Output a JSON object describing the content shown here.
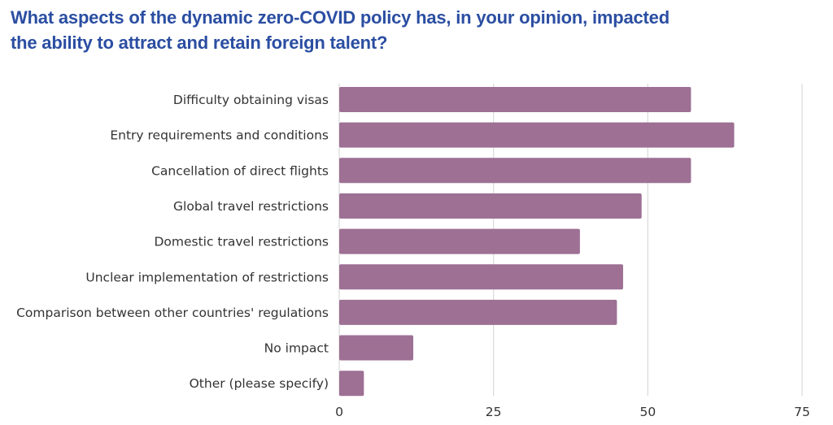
{
  "title": {
    "line1": "What aspects of the dynamic zero-COVID policy has, in your opinion, impacted",
    "line2": "the ability to attract and retain foreign talent?"
  },
  "colors": {
    "title": "#2b4ea2",
    "bar": "#9d7094",
    "grid": "#d9d9d9",
    "text": "#333333"
  },
  "chart_data": {
    "type": "bar",
    "orientation": "horizontal",
    "title": "What aspects of the dynamic zero-COVID policy has, in your opinion, impacted the ability to attract and retain foreign talent?",
    "categories": [
      "Difficulty obtaining visas",
      "Entry requirements and conditions",
      "Cancellation of direct flights",
      "Global travel restrictions",
      "Domestic travel restrictions",
      "Unclear implementation of restrictions",
      "Comparison between other countries' regulations",
      "No impact",
      "Other (please specify)"
    ],
    "values": [
      57,
      64,
      57,
      49,
      39,
      46,
      45,
      12,
      4
    ],
    "xlim": [
      0,
      75
    ],
    "xticks": [
      "0",
      "25",
      "50",
      "75"
    ],
    "xlabel": "",
    "ylabel": "",
    "grid": true,
    "legend": "none"
  }
}
